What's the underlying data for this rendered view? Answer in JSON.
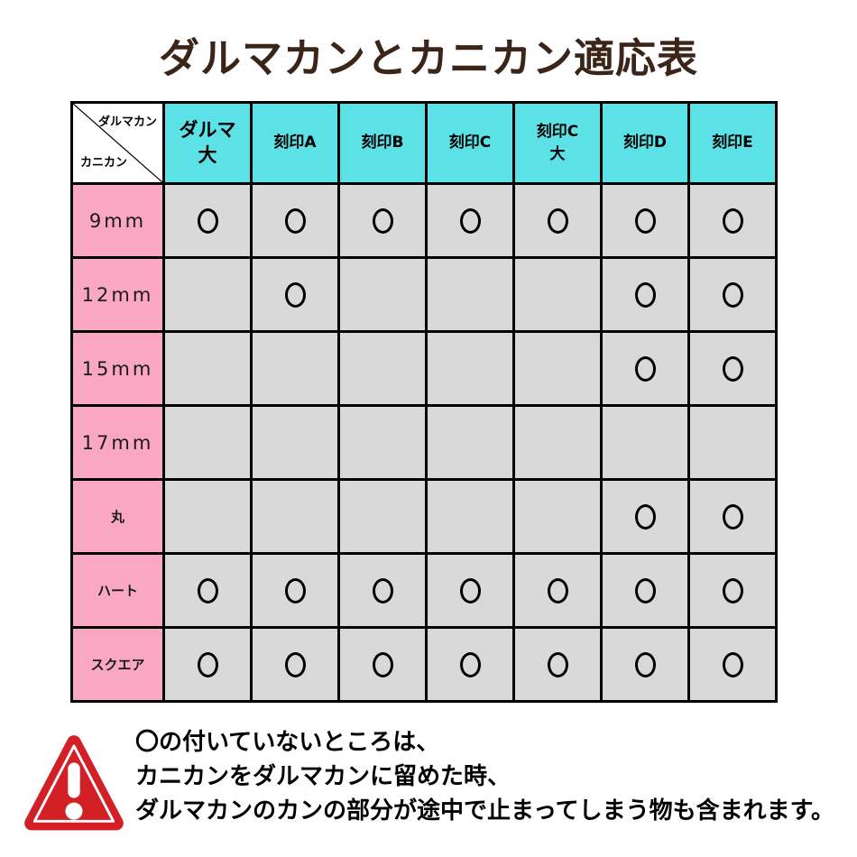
{
  "title": "ダルマカンとカニカン適応表",
  "table": {
    "corner": {
      "top_label": "ダルマカン",
      "bottom_label": "カニカン"
    },
    "columns": [
      "ダルマ\n大",
      "刻印A",
      "刻印B",
      "刻印C",
      "刻印C\n大",
      "刻印D",
      "刻印E"
    ],
    "rows": [
      {
        "label": "9mm",
        "type": "size",
        "marks": [
          1,
          1,
          1,
          1,
          1,
          1,
          1
        ]
      },
      {
        "label": "12mm",
        "type": "size",
        "marks": [
          0,
          1,
          0,
          0,
          0,
          1,
          1
        ]
      },
      {
        "label": "15mm",
        "type": "size",
        "marks": [
          0,
          0,
          0,
          0,
          0,
          1,
          1
        ]
      },
      {
        "label": "17mm",
        "type": "size",
        "marks": [
          0,
          0,
          0,
          0,
          0,
          0,
          0
        ]
      },
      {
        "label": "丸",
        "type": "shape",
        "marks": [
          0,
          0,
          0,
          0,
          0,
          1,
          1
        ]
      },
      {
        "label": "ハート",
        "type": "shape",
        "marks": [
          1,
          1,
          1,
          1,
          1,
          1,
          1
        ]
      },
      {
        "label": "スクエア",
        "type": "shape",
        "marks": [
          1,
          1,
          1,
          1,
          1,
          1,
          1
        ]
      }
    ],
    "mark_symbol": "〇"
  },
  "note": {
    "icon": "warning-triangle-icon",
    "lines": [
      "〇の付いていないところは、",
      "カニカンをダルマカンに留めた時、",
      "ダルマカンのカンの部分が途中で止まってしまう物も含まれます。"
    ]
  },
  "colors": {
    "header_bg": "#5CE1E6",
    "row_label_bg": "#FAA7C4",
    "cell_bg": "#D9D9D9",
    "border": "#000000",
    "title_text": "#3B2418",
    "warning_red": "#D32027"
  }
}
